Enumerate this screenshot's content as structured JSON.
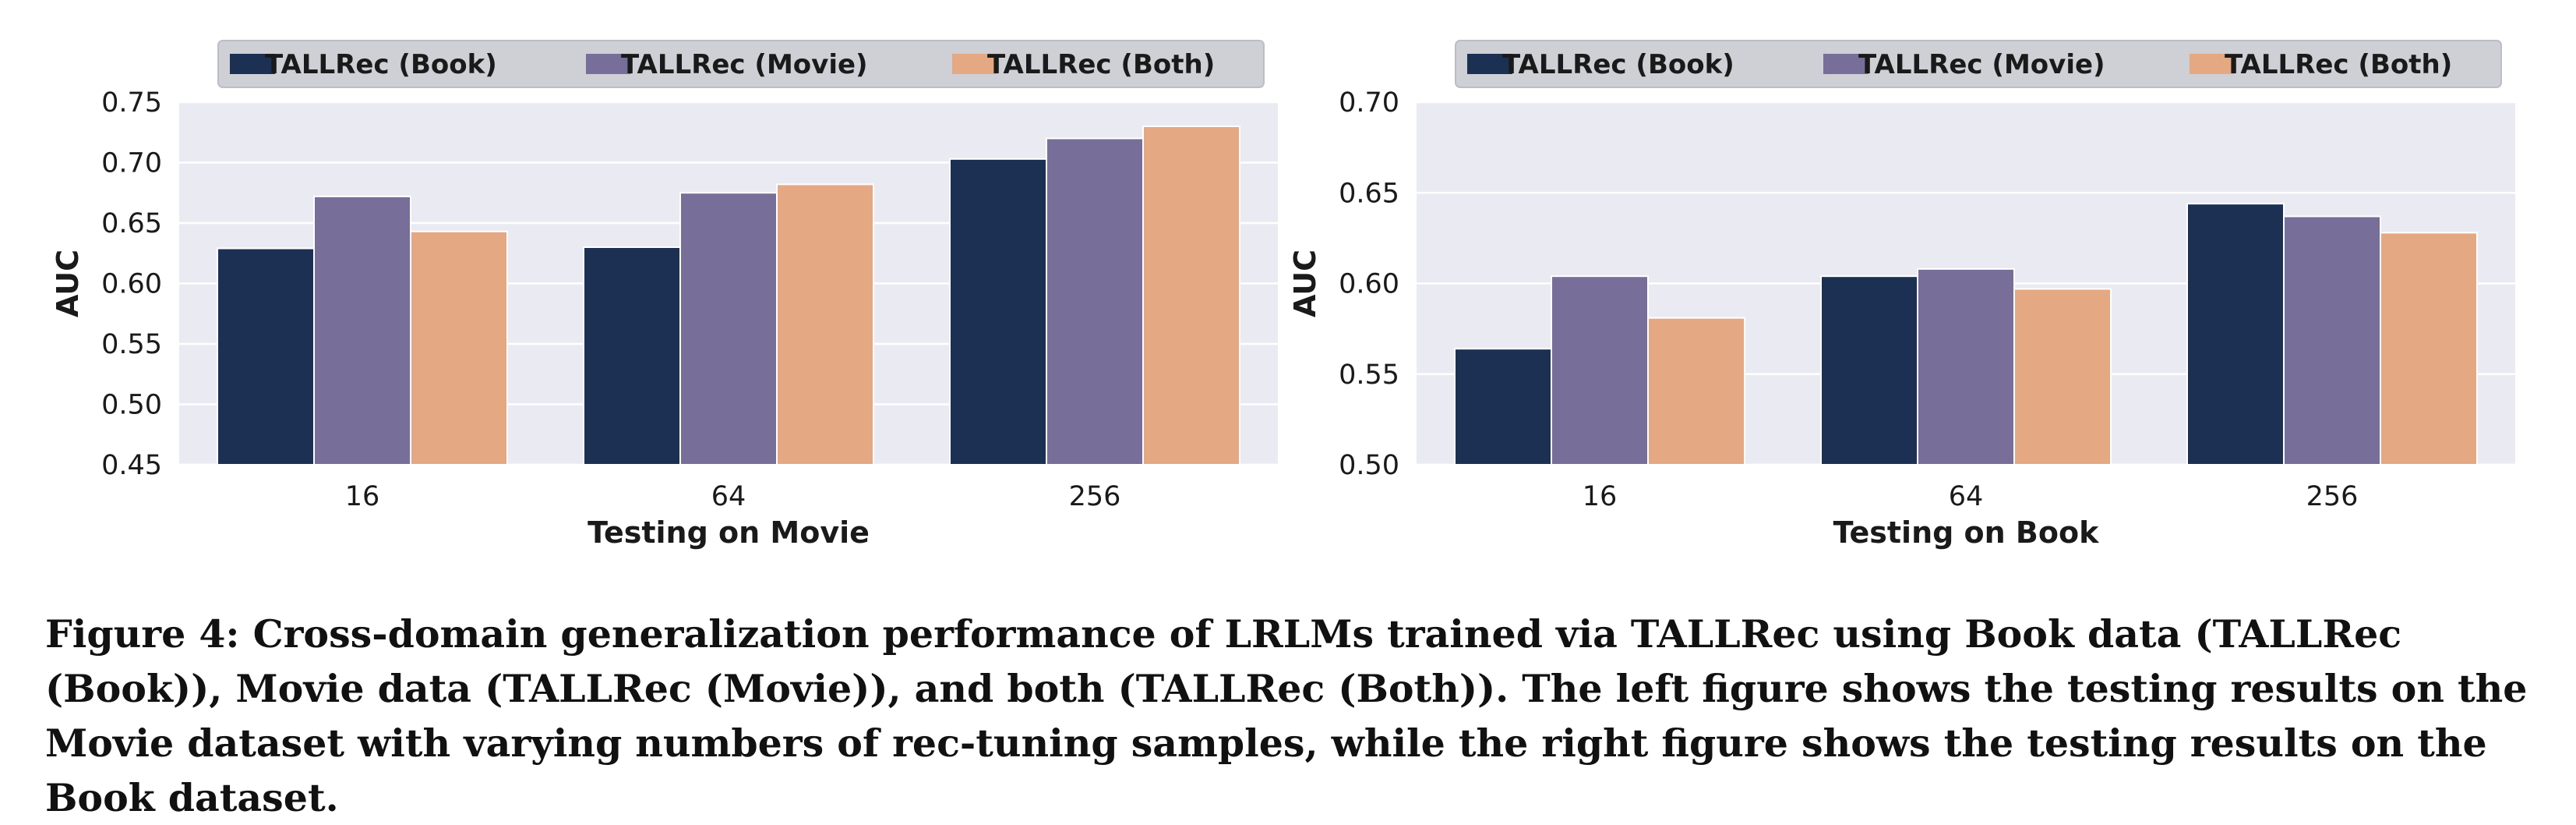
{
  "colors": {
    "plot_bg": "#EAEAF2",
    "grid": "#FFFFFF",
    "legend_bg": "#CFCFD6",
    "series": [
      "#1C3053",
      "#776E99",
      "#E4A883"
    ]
  },
  "chart_data": [
    {
      "type": "bar",
      "title": "",
      "xlabel": "Testing on Movie",
      "ylabel": "AUC",
      "categories": [
        "16",
        "64",
        "256"
      ],
      "ylim": [
        0.45,
        0.75
      ],
      "yticks": [
        "0.45",
        "0.50",
        "0.55",
        "0.60",
        "0.65",
        "0.70",
        "0.75"
      ],
      "legend_position": "top",
      "grid": true,
      "series": [
        {
          "name": "TALLRec (Book)",
          "values": [
            0.629,
            0.63,
            0.703
          ]
        },
        {
          "name": "TALLRec (Movie)",
          "values": [
            0.672,
            0.675,
            0.72
          ]
        },
        {
          "name": "TALLRec (Both)",
          "values": [
            0.643,
            0.682,
            0.73
          ]
        }
      ]
    },
    {
      "type": "bar",
      "title": "",
      "xlabel": "Testing on Book",
      "ylabel": "AUC",
      "categories": [
        "16",
        "64",
        "256"
      ],
      "ylim": [
        0.5,
        0.7
      ],
      "yticks": [
        "0.50",
        "0.55",
        "0.60",
        "0.65",
        "0.70"
      ],
      "legend_position": "top",
      "grid": true,
      "series": [
        {
          "name": "TALLRec (Book)",
          "values": [
            0.564,
            0.604,
            0.644
          ]
        },
        {
          "name": "TALLRec (Movie)",
          "values": [
            0.604,
            0.608,
            0.637
          ]
        },
        {
          "name": "TALLRec (Both)",
          "values": [
            0.581,
            0.597,
            0.628
          ]
        }
      ]
    }
  ],
  "caption": "Figure 4: Cross-domain generalization performance of LRLMs trained via TALLRec using Book data (TALLRec (Book)), Movie data (TALLRec (Movie)), and both (TALLRec (Both)). The left figure shows the testing results on the Movie dataset with varying numbers of rec-tuning samples, while the right figure shows the testing results on the Book dataset."
}
